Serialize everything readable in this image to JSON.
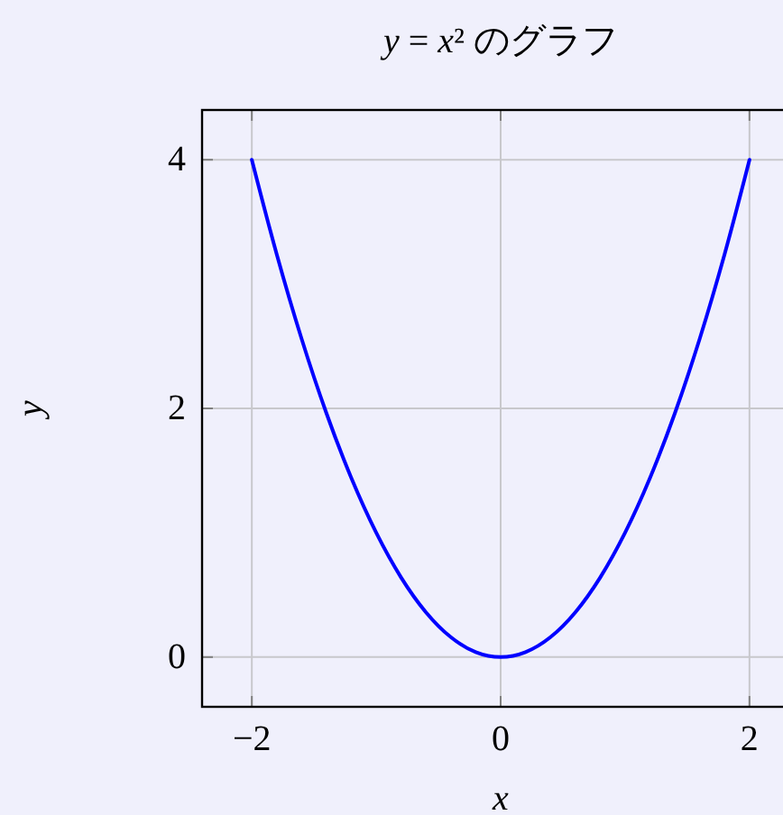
{
  "chart_data": {
    "type": "line",
    "title": "y = x² のグラフ",
    "xlabel": "x",
    "ylabel": "y",
    "series": [
      {
        "color": "#0000ff",
        "x": [
          -2,
          -1.8,
          -1.6,
          -1.4,
          -1.2,
          -1,
          -0.8,
          -0.6,
          -0.4,
          -0.2,
          0,
          0.2,
          0.4,
          0.6,
          0.8,
          1,
          1.2,
          1.4,
          1.6,
          1.8,
          2
        ],
        "values": [
          4,
          3.24,
          2.56,
          1.96,
          1.44,
          1,
          0.64,
          0.36,
          0.16,
          0.04,
          0,
          0.04,
          0.16,
          0.36,
          0.64,
          1,
          1.44,
          1.96,
          2.56,
          3.24,
          4
        ]
      }
    ],
    "xlim": [
      -2.4,
      2.4
    ],
    "ylim": [
      -0.4,
      4.4
    ],
    "xticks": [
      {
        "value": -2,
        "label": "−2"
      },
      0,
      2
    ],
    "yticks": [
      0,
      2,
      4
    ],
    "grid": true
  }
}
